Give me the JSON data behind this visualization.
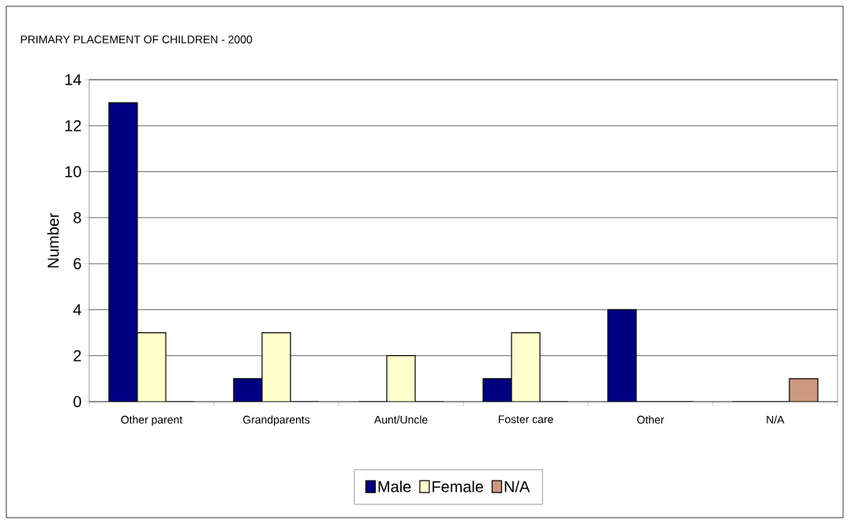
{
  "chart_data": {
    "type": "bar",
    "title": "PRIMARY PLACEMENT OF CHILDREN - 2000",
    "ylabel": "Number",
    "categories": [
      "Other parent",
      "Grandparents",
      "Aunt/Uncle",
      "Foster care",
      "Other",
      "N/A"
    ],
    "series": [
      {
        "name": "Male",
        "color": "#000080",
        "values": [
          13,
          1,
          0,
          1,
          4,
          0
        ]
      },
      {
        "name": "Female",
        "color": "#ffffcc",
        "values": [
          3,
          3,
          2,
          3,
          0,
          0
        ]
      },
      {
        "name": "N/A",
        "color": "#cc9980",
        "values": [
          0,
          0,
          0,
          0,
          0,
          1
        ]
      }
    ],
    "ylim": [
      0,
      14
    ],
    "yticks": [
      0,
      2,
      4,
      6,
      8,
      10,
      12,
      14
    ],
    "grid": "y",
    "legend": "bottom"
  }
}
